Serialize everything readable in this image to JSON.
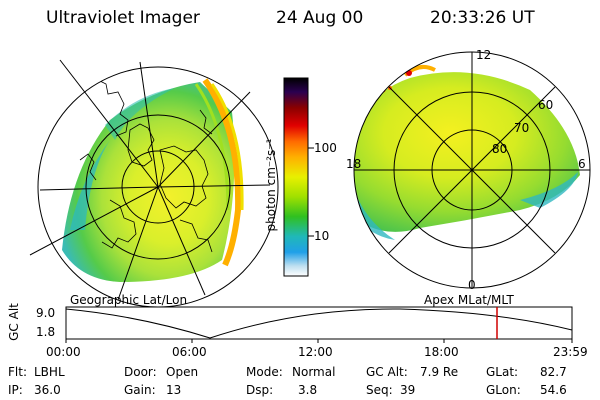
{
  "header": {
    "instrument": "Ultraviolet Imager",
    "date": "24 Aug 00",
    "time": "20:33:26 UT"
  },
  "colorbar": {
    "unit_label": "photon cm⁻²s⁻¹",
    "ticks": [
      "100",
      "10"
    ],
    "scale": "log",
    "colors": [
      "#000000",
      "#2a0050",
      "#8a0000",
      "#e00000",
      "#ff6a00",
      "#ffb000",
      "#e8f000",
      "#a0e000",
      "#30c020",
      "#20b8b8",
      "#20a0e8",
      "#c0e0f0",
      "#ffffff"
    ]
  },
  "left_panel": {
    "projection_label": "Geographic Lat/Lon"
  },
  "right_panel": {
    "projection_label": "Apex MLat/MLT",
    "mlt_labels": {
      "top": "12",
      "bottom": "0",
      "left": "18",
      "right": "6"
    },
    "lat_labels": [
      "60",
      "70",
      "80"
    ]
  },
  "altitude_plot": {
    "ylabel": "GC Alt",
    "yticks": [
      "9.0",
      "1.8"
    ],
    "xticks": [
      "00:00",
      "06:00",
      "12:00",
      "18:00",
      "23:59"
    ],
    "marker_time_hours": 20.56,
    "marker_color": "#d00000"
  },
  "info": {
    "filter_label": "Flt:",
    "filter_value": "LBHL",
    "door_label": "Door:",
    "door_value": "Open",
    "mode_label": "Mode:",
    "mode_value": "Normal",
    "gcalt_label": "GC Alt:",
    "gcalt_value": "7.9 Re",
    "glat_label": "GLat:",
    "glat_value": "82.7",
    "ip_label": "IP:",
    "ip_value": "36.0",
    "gain_label": "Gain:",
    "gain_value": "13",
    "dsp_label": "Dsp:",
    "dsp_value": "3.8",
    "seq_label": "Seq:",
    "seq_value": "39",
    "glon_label": "GLon:",
    "glon_value": "54.6"
  }
}
